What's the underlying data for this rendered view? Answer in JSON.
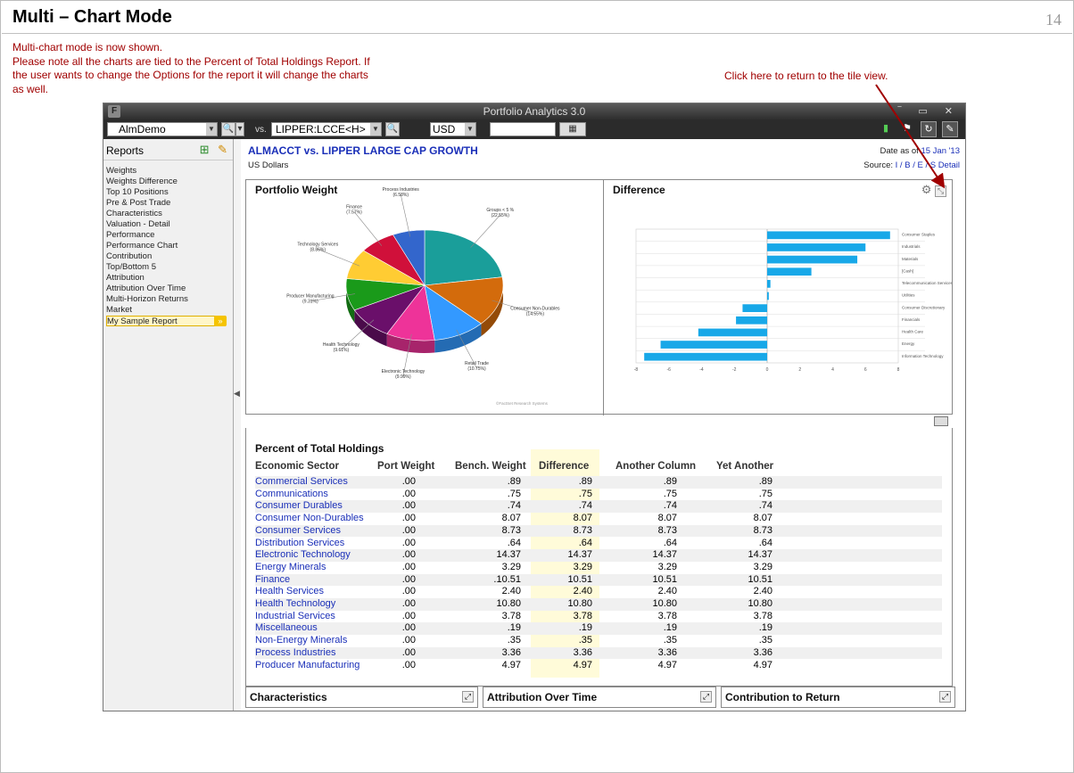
{
  "slide": {
    "title": "Multi – Chart Mode",
    "number": "14",
    "note_lines": [
      "Multi-chart mode is now shown.",
      "Please note all the charts are tied to the Percent of Total Holdings Report.  If",
      "the user wants to change the Options for the report it will change the charts",
      "as well."
    ],
    "callout": "Click here  to return to the tile view."
  },
  "app": {
    "window_title": "Portfolio Analytics 3.0",
    "logo": "F",
    "portfolio": "AlmDemo",
    "vs_label": "vs.",
    "benchmark": "LIPPER:LCCE<H>",
    "currency": "USD",
    "date_input": ""
  },
  "sidebar": {
    "heading": "Reports",
    "items": [
      "Weights",
      "Weights Difference",
      "Top 10 Positions",
      "Pre & Post Trade",
      "Characteristics",
      "Valuation - Detail",
      "Performance",
      "Performance Chart",
      "Contribution",
      "Top/Bottom 5",
      "Attribution",
      "Attribution Over Time",
      "Multi-Horizon Returns",
      "Market",
      "My Sample Report"
    ],
    "selected_index": 14
  },
  "report": {
    "title": "ALMACCT vs. LIPPER LARGE CAP GROWTH",
    "subtitle": "US Dollars",
    "date_prefix": "Date as of",
    "date_value": "15 Jan '13",
    "source_prefix": "Source:",
    "source_links": "I / B / E / S Detail"
  },
  "tiles": {
    "left_title": "Portfolio Weight",
    "right_title": "Difference",
    "bottom": [
      "Characteristics",
      "Attribution Over Time",
      "Contribution to Return"
    ]
  },
  "chart_data": [
    {
      "type": "pie",
      "title": "Portfolio Weight",
      "slices": [
        {
          "label": "Groups < 5 %",
          "value": 22.55,
          "color": "#1a9e9a"
        },
        {
          "label": "Consumer Non-Durables",
          "value": 14.55,
          "color": "#d36b0c"
        },
        {
          "label": "Retail Trade",
          "value": 10.75,
          "color": "#3399ff"
        },
        {
          "label": "Electronic Technology",
          "value": 9.99,
          "color": "#ee3399"
        },
        {
          "label": "Health Technology",
          "value": 9.61,
          "color": "#6a0f6a"
        },
        {
          "label": "Producer Manufacturing",
          "value": 9.31,
          "color": "#1a9a1a"
        },
        {
          "label": "Technology Services",
          "value": 8.86,
          "color": "#ffcc33"
        },
        {
          "label": "Finance",
          "value": 7.57,
          "color": "#d0103a"
        },
        {
          "label": "Process Industries",
          "value": 6.58,
          "color": "#3366cc"
        }
      ],
      "label_texts": [
        {
          "name": "Groups < 5 %",
          "pct": "(22.55%)"
        },
        {
          "name": "Consumer Non-Durables",
          "pct": "(14.55%)"
        },
        {
          "name": "Retail Trade",
          "pct": "(10.75%)"
        },
        {
          "name": "Electronic Technology",
          "pct": "(9.99%)"
        },
        {
          "name": "Health Technology",
          "pct": "(9.61%)"
        },
        {
          "name": "Producer Manufacturing",
          "pct": "(9.31%)"
        },
        {
          "name": "Technology Services",
          "pct": "(8.86%)"
        },
        {
          "name": "Finance",
          "pct": "(7.57%)"
        },
        {
          "name": "Process Industries",
          "pct": "(6.58%)"
        }
      ],
      "credit": "©FactSet Research Systems"
    },
    {
      "type": "bar",
      "orientation": "horizontal",
      "title": "Difference",
      "categories": [
        "Consumer Staples",
        "Industrials",
        "Materials",
        "[Cash]",
        "Telecommunication Services",
        "Utilities",
        "Consumer Discretionary",
        "Financials",
        "Health Care",
        "Energy",
        "Information Technology"
      ],
      "values": [
        7.5,
        6.0,
        5.5,
        2.7,
        0.2,
        0.1,
        -1.5,
        -1.9,
        -4.2,
        -6.5,
        -7.5
      ],
      "bar_color": "#18a8e8",
      "xlim": [
        -8,
        8
      ],
      "ticks": [
        "-8",
        "-6",
        "-4",
        "-2",
        "0",
        "2",
        "4",
        "6",
        "8"
      ]
    }
  ],
  "table": {
    "title": "Percent of Total Holdings",
    "headers": [
      "Economic Sector",
      "Port Weight",
      "Bench. Weight",
      "Difference",
      "Another Column",
      "Yet Another"
    ],
    "rows": [
      [
        "Commercial Services",
        ".00",
        ".89",
        ".89",
        ".89",
        ".89"
      ],
      [
        "Communications",
        ".00",
        ".75",
        ".75",
        ".75",
        ".75"
      ],
      [
        "Consumer Durables",
        ".00",
        ".74",
        ".74",
        ".74",
        ".74"
      ],
      [
        "Consumer Non-Durables",
        ".00",
        "8.07",
        "8.07",
        "8.07",
        "8.07"
      ],
      [
        "Consumer Services",
        ".00",
        "8.73",
        "8.73",
        "8.73",
        "8.73"
      ],
      [
        "Distribution Services",
        ".00",
        ".64",
        ".64",
        ".64",
        ".64"
      ],
      [
        "Electronic Technology",
        ".00",
        "14.37",
        "14.37",
        "14.37",
        "14.37"
      ],
      [
        "Energy Minerals",
        ".00",
        "3.29",
        "3.29",
        "3.29",
        "3.29"
      ],
      [
        "Finance",
        ".00",
        ".10.51",
        "10.51",
        "10.51",
        "10.51"
      ],
      [
        "Health Services",
        ".00",
        "2.40",
        "2.40",
        "2.40",
        "2.40"
      ],
      [
        "Health Technology",
        ".00",
        "10.80",
        "10.80",
        "10.80",
        "10.80"
      ],
      [
        "Industrial Services",
        ".00",
        "3.78",
        "3.78",
        "3.78",
        "3.78"
      ],
      [
        "Miscellaneous",
        ".00",
        ".19",
        ".19",
        ".19",
        ".19"
      ],
      [
        "Non-Energy Minerals",
        ".00",
        ".35",
        ".35",
        ".35",
        ".35"
      ],
      [
        "Process Industries",
        ".00",
        "3.36",
        "3.36",
        "3.36",
        "3.36"
      ],
      [
        "Producer Manufacturing",
        ".00",
        "4.97",
        "4.97",
        "4.97",
        "4.97"
      ]
    ]
  }
}
